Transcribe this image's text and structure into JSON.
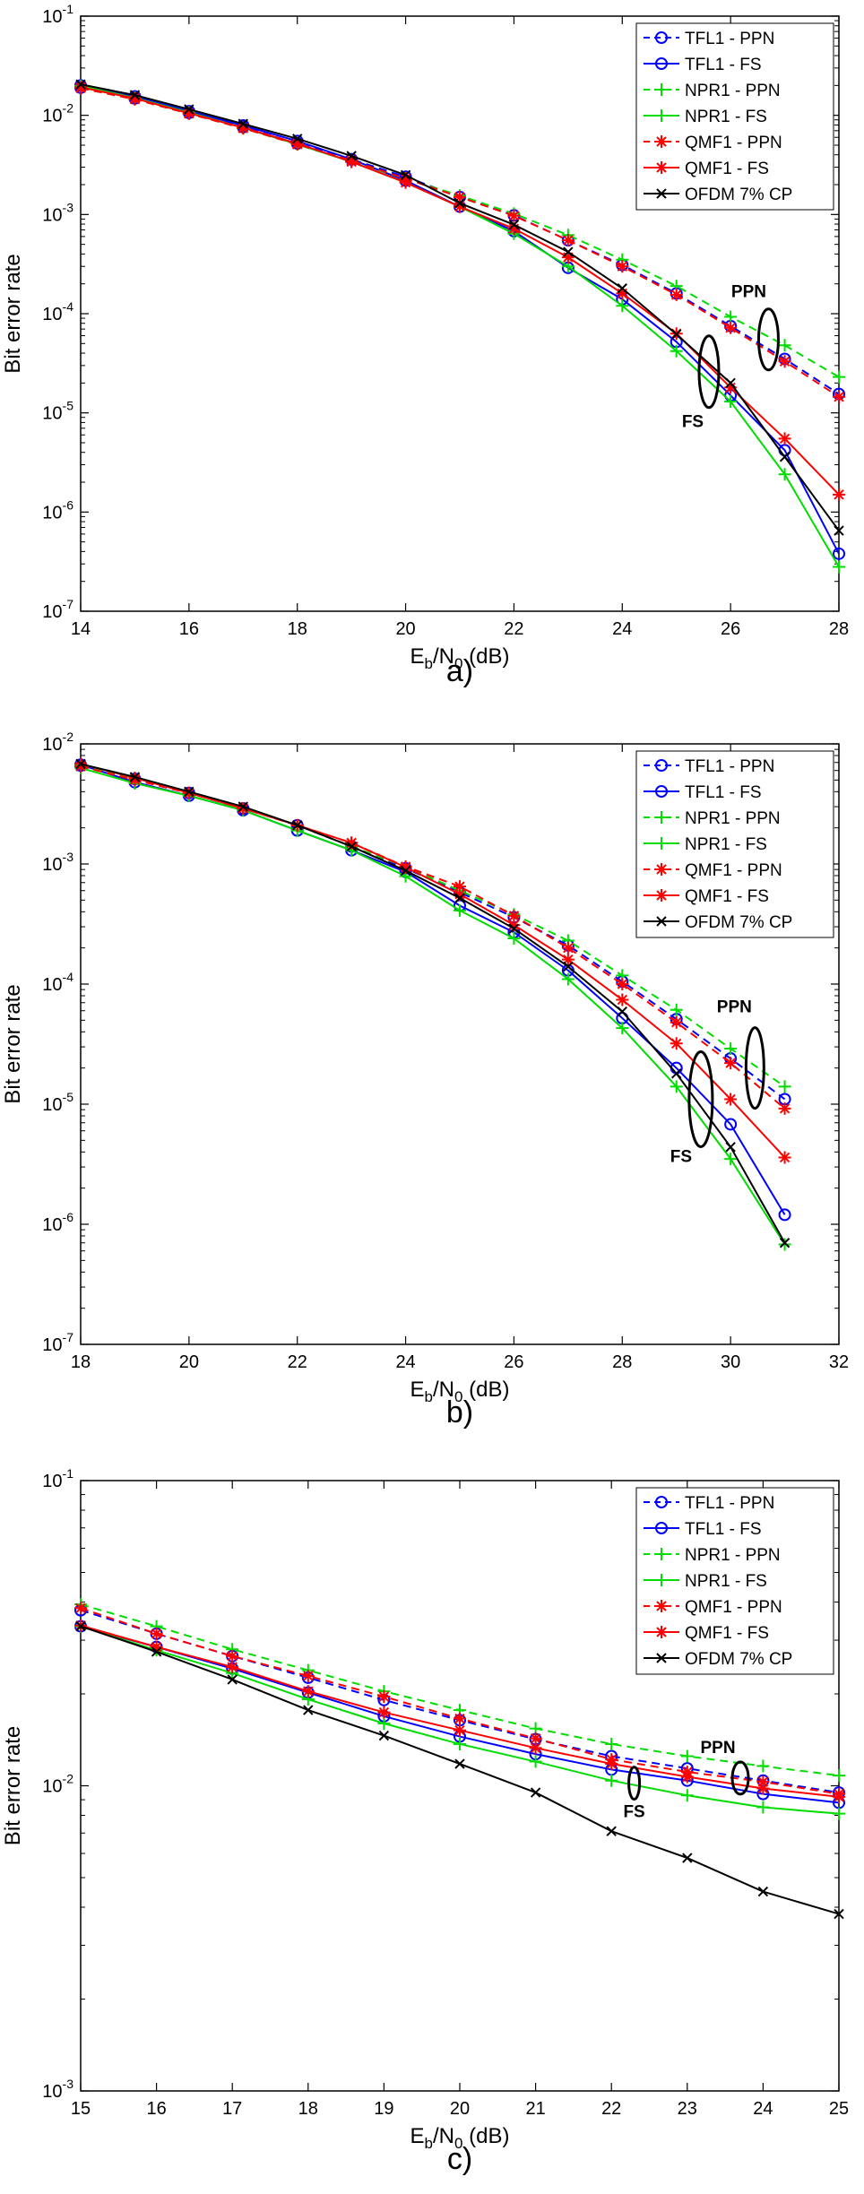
{
  "chart_data": [
    {
      "type": "line",
      "panel": "a)",
      "xlabel": "Eb/N0 (dB)",
      "ylabel": "Bit error rate",
      "xlim": [
        14,
        28
      ],
      "ylim": [
        1e-07,
        0.1
      ],
      "xscale": "linear",
      "yscale": "log",
      "grid": false,
      "legend_position": "top-right",
      "xticks": [
        14,
        16,
        18,
        20,
        22,
        24,
        26,
        28
      ],
      "yticks": [
        -7,
        -6,
        -5,
        -4,
        -3,
        -2,
        -1
      ],
      "x": [
        14,
        15,
        16,
        17,
        18,
        19,
        20,
        21,
        22,
        23,
        24,
        25,
        26,
        27,
        28
      ],
      "series": [
        {
          "name": "TFL1 - PPN",
          "color": "#0000ff",
          "dash": true,
          "marker": "circle",
          "values": [
            0.019,
            0.0148,
            0.0106,
            0.0076,
            0.0052,
            0.0036,
            0.0024,
            0.0015,
            0.00098,
            0.00055,
            0.00031,
            0.00016,
            7.5e-05,
            3.5e-05,
            1.55e-05
          ]
        },
        {
          "name": "TFL1 - FS",
          "color": "#0000ff",
          "dash": false,
          "marker": "circle",
          "values": [
            0.02,
            0.0155,
            0.011,
            0.0079,
            0.0055,
            0.0036,
            0.0022,
            0.0012,
            0.00068,
            0.00029,
            0.00014,
            5.2e-05,
            1.5e-05,
            4.2e-06,
            3.8e-07
          ]
        },
        {
          "name": "NPR1 - PPN",
          "color": "#00dd00",
          "dash": true,
          "marker": "plus",
          "values": [
            0.0188,
            0.0145,
            0.0104,
            0.0074,
            0.0051,
            0.0034,
            0.0023,
            0.00155,
            0.00102,
            0.00062,
            0.00035,
            0.00019,
            9.3e-05,
            4.8e-05,
            2.3e-05
          ]
        },
        {
          "name": "NPR1 - FS",
          "color": "#00dd00",
          "dash": false,
          "marker": "plus",
          "values": [
            0.0198,
            0.015,
            0.0107,
            0.0075,
            0.0051,
            0.0034,
            0.0021,
            0.0012,
            0.00064,
            0.0003,
            0.00012,
            4.2e-05,
            1.3e-05,
            2.4e-06,
            2.8e-07
          ]
        },
        {
          "name": "QMF1 - PPN",
          "color": "#ff0000",
          "dash": true,
          "marker": "asterisk",
          "values": [
            0.0188,
            0.0145,
            0.0104,
            0.0074,
            0.0051,
            0.0035,
            0.0023,
            0.0015,
            0.00097,
            0.00055,
            0.0003,
            0.000155,
            7.2e-05,
            3.3e-05,
            1.45e-05
          ]
        },
        {
          "name": "QMF1 - FS",
          "color": "#ff0000",
          "dash": false,
          "marker": "asterisk",
          "values": [
            0.0192,
            0.0148,
            0.0105,
            0.0075,
            0.0052,
            0.0034,
            0.0021,
            0.0012,
            0.00072,
            0.00037,
            0.00016,
            6.3e-05,
            1.8e-05,
            5.5e-06,
            1.5e-06
          ]
        },
        {
          "name": "OFDM 7% CP",
          "color": "#000000",
          "dash": false,
          "marker": "x",
          "values": [
            0.0205,
            0.016,
            0.0115,
            0.0082,
            0.0058,
            0.0039,
            0.0025,
            0.0013,
            0.00079,
            0.00042,
            0.00018,
            6.2e-05,
            2e-05,
            3.6e-06,
            6.5e-07
          ]
        }
      ],
      "annotations": [
        {
          "text": "PPN",
          "x": 26.7,
          "y": 5.5e-05,
          "ellipse": true
        },
        {
          "text": "FS",
          "x": 25.6,
          "y": 2.6e-05,
          "ellipse": true
        }
      ]
    },
    {
      "type": "line",
      "panel": "b)",
      "xlabel": "Eb/N0 (dB)",
      "ylabel": "Bit error rate",
      "xlim": [
        18,
        32
      ],
      "ylim": [
        1e-07,
        0.01
      ],
      "xscale": "linear",
      "yscale": "log",
      "grid": false,
      "legend_position": "top-right",
      "xticks": [
        18,
        20,
        22,
        24,
        26,
        28,
        30,
        32
      ],
      "yticks": [
        -7,
        -6,
        -5,
        -4,
        -3,
        -2
      ],
      "x": [
        18,
        19,
        20,
        21,
        22,
        23,
        24,
        25,
        26,
        27,
        28,
        29,
        30,
        31
      ],
      "series": [
        {
          "name": "TFL1 - PPN",
          "color": "#0000ff",
          "dash": true,
          "marker": "circle",
          "values": [
            0.0066,
            0.0051,
            0.0039,
            0.0029,
            0.0021,
            0.0014,
            0.00092,
            0.00058,
            0.00036,
            0.00021,
            0.000105,
            5.1e-05,
            2.4e-05,
            1.1e-05
          ]
        },
        {
          "name": "TFL1 - FS",
          "color": "#0000ff",
          "dash": false,
          "marker": "circle",
          "values": [
            0.0067,
            0.0048,
            0.0037,
            0.0028,
            0.0019,
            0.0013,
            0.00086,
            0.00045,
            0.00027,
            0.00013,
            5.2e-05,
            2e-05,
            6.8e-06,
            1.2e-06
          ]
        },
        {
          "name": "NPR1 - PPN",
          "color": "#00dd00",
          "dash": true,
          "marker": "plus",
          "values": [
            0.0066,
            0.0051,
            0.0039,
            0.0029,
            0.0021,
            0.0014,
            0.00095,
            0.0006,
            0.00038,
            0.00023,
            0.000118,
            6.1e-05,
            2.9e-05,
            1.4e-05
          ]
        },
        {
          "name": "NPR1 - FS",
          "color": "#00dd00",
          "dash": false,
          "marker": "plus",
          "values": [
            0.0063,
            0.0047,
            0.0037,
            0.0028,
            0.0019,
            0.0013,
            0.00079,
            0.00041,
            0.00024,
            0.00011,
            4.3e-05,
            1.4e-05,
            3.5e-06,
            6.8e-07
          ]
        },
        {
          "name": "QMF1 - PPN",
          "color": "#ff0000",
          "dash": true,
          "marker": "asterisk",
          "values": [
            0.0065,
            0.005,
            0.0039,
            0.0029,
            0.0021,
            0.0015,
            0.00095,
            0.00065,
            0.00037,
            0.0002,
            0.0001,
            4.8e-05,
            2.2e-05,
            9.2e-06
          ]
        },
        {
          "name": "QMF1 - FS",
          "color": "#ff0000",
          "dash": false,
          "marker": "asterisk",
          "values": [
            0.0068,
            0.0052,
            0.0039,
            0.0029,
            0.0021,
            0.0015,
            0.00094,
            0.00056,
            0.00031,
            0.00016,
            7.4e-05,
            3.2e-05,
            1.1e-05,
            3.6e-06
          ]
        },
        {
          "name": "OFDM 7% CP",
          "color": "#000000",
          "dash": false,
          "marker": "x",
          "values": [
            0.0068,
            0.0053,
            0.004,
            0.003,
            0.0021,
            0.0014,
            0.00088,
            0.00052,
            0.00029,
            0.00014,
            5.9e-05,
            1.8e-05,
            4.4e-06,
            7e-07
          ]
        }
      ],
      "annotations": [
        {
          "text": "PPN",
          "x": 30.45,
          "y": 2e-05,
          "ellipse": true
        },
        {
          "text": "FS",
          "x": 29.45,
          "y": 1.1e-05,
          "ellipse": true
        }
      ]
    },
    {
      "type": "line",
      "panel": "c)",
      "xlabel": "Eb/N0 (dB)",
      "ylabel": "Bit error rate",
      "xlim": [
        15,
        25
      ],
      "ylim": [
        0.001,
        0.1
      ],
      "xscale": "linear",
      "yscale": "log",
      "grid": false,
      "legend_position": "top-right",
      "xticks": [
        15,
        16,
        17,
        18,
        19,
        20,
        21,
        22,
        23,
        24,
        25
      ],
      "yticks": [
        -3,
        -2,
        -1
      ],
      "x": [
        15,
        16,
        17,
        18,
        19,
        20,
        21,
        22,
        23,
        24,
        25
      ],
      "series": [
        {
          "name": "TFL1 - PPN",
          "color": "#0000ff",
          "dash": true,
          "marker": "circle",
          "values": [
            0.0376,
            0.0315,
            0.0266,
            0.0226,
            0.0191,
            0.0164,
            0.0142,
            0.0125,
            0.0114,
            0.0104,
            0.0095
          ]
        },
        {
          "name": "TFL1 - FS",
          "color": "#0000ff",
          "dash": false,
          "marker": "circle",
          "values": [
            0.0333,
            0.0285,
            0.0242,
            0.0202,
            0.0169,
            0.0145,
            0.0127,
            0.0113,
            0.0104,
            0.0094,
            0.0088
          ]
        },
        {
          "name": "NPR1 - PPN",
          "color": "#00dd00",
          "dash": true,
          "marker": "plus",
          "values": [
            0.0393,
            0.0333,
            0.028,
            0.0239,
            0.0204,
            0.0177,
            0.0154,
            0.0137,
            0.0125,
            0.0116,
            0.0108
          ]
        },
        {
          "name": "NPR1 - FS",
          "color": "#00dd00",
          "dash": false,
          "marker": "plus",
          "values": [
            0.0333,
            0.0278,
            0.0234,
            0.0192,
            0.016,
            0.0137,
            0.012,
            0.0104,
            0.0093,
            0.0085,
            0.0081
          ]
        },
        {
          "name": "QMF1 - PPN",
          "color": "#ff0000",
          "dash": true,
          "marker": "asterisk",
          "values": [
            0.0382,
            0.0315,
            0.0266,
            0.0229,
            0.0196,
            0.0166,
            0.0143,
            0.0122,
            0.0111,
            0.0103,
            0.0094
          ]
        },
        {
          "name": "QMF1 - FS",
          "color": "#ff0000",
          "dash": false,
          "marker": "asterisk",
          "values": [
            0.0335,
            0.0285,
            0.0245,
            0.0204,
            0.0174,
            0.0152,
            0.0133,
            0.0118,
            0.0107,
            0.0098,
            0.0092
          ]
        },
        {
          "name": "OFDM 7% CP",
          "color": "#000000",
          "dash": false,
          "marker": "x",
          "values": [
            0.0333,
            0.0275,
            0.0223,
            0.0177,
            0.0146,
            0.0118,
            0.0095,
            0.0071,
            0.0058,
            0.0045,
            0.0038
          ]
        }
      ],
      "annotations": [
        {
          "text": "PPN",
          "x": 23.7,
          "y": 0.0106,
          "ellipse": true
        },
        {
          "text": "FS",
          "x": 22.3,
          "y": 0.0102,
          "ellipse": true
        }
      ]
    }
  ]
}
